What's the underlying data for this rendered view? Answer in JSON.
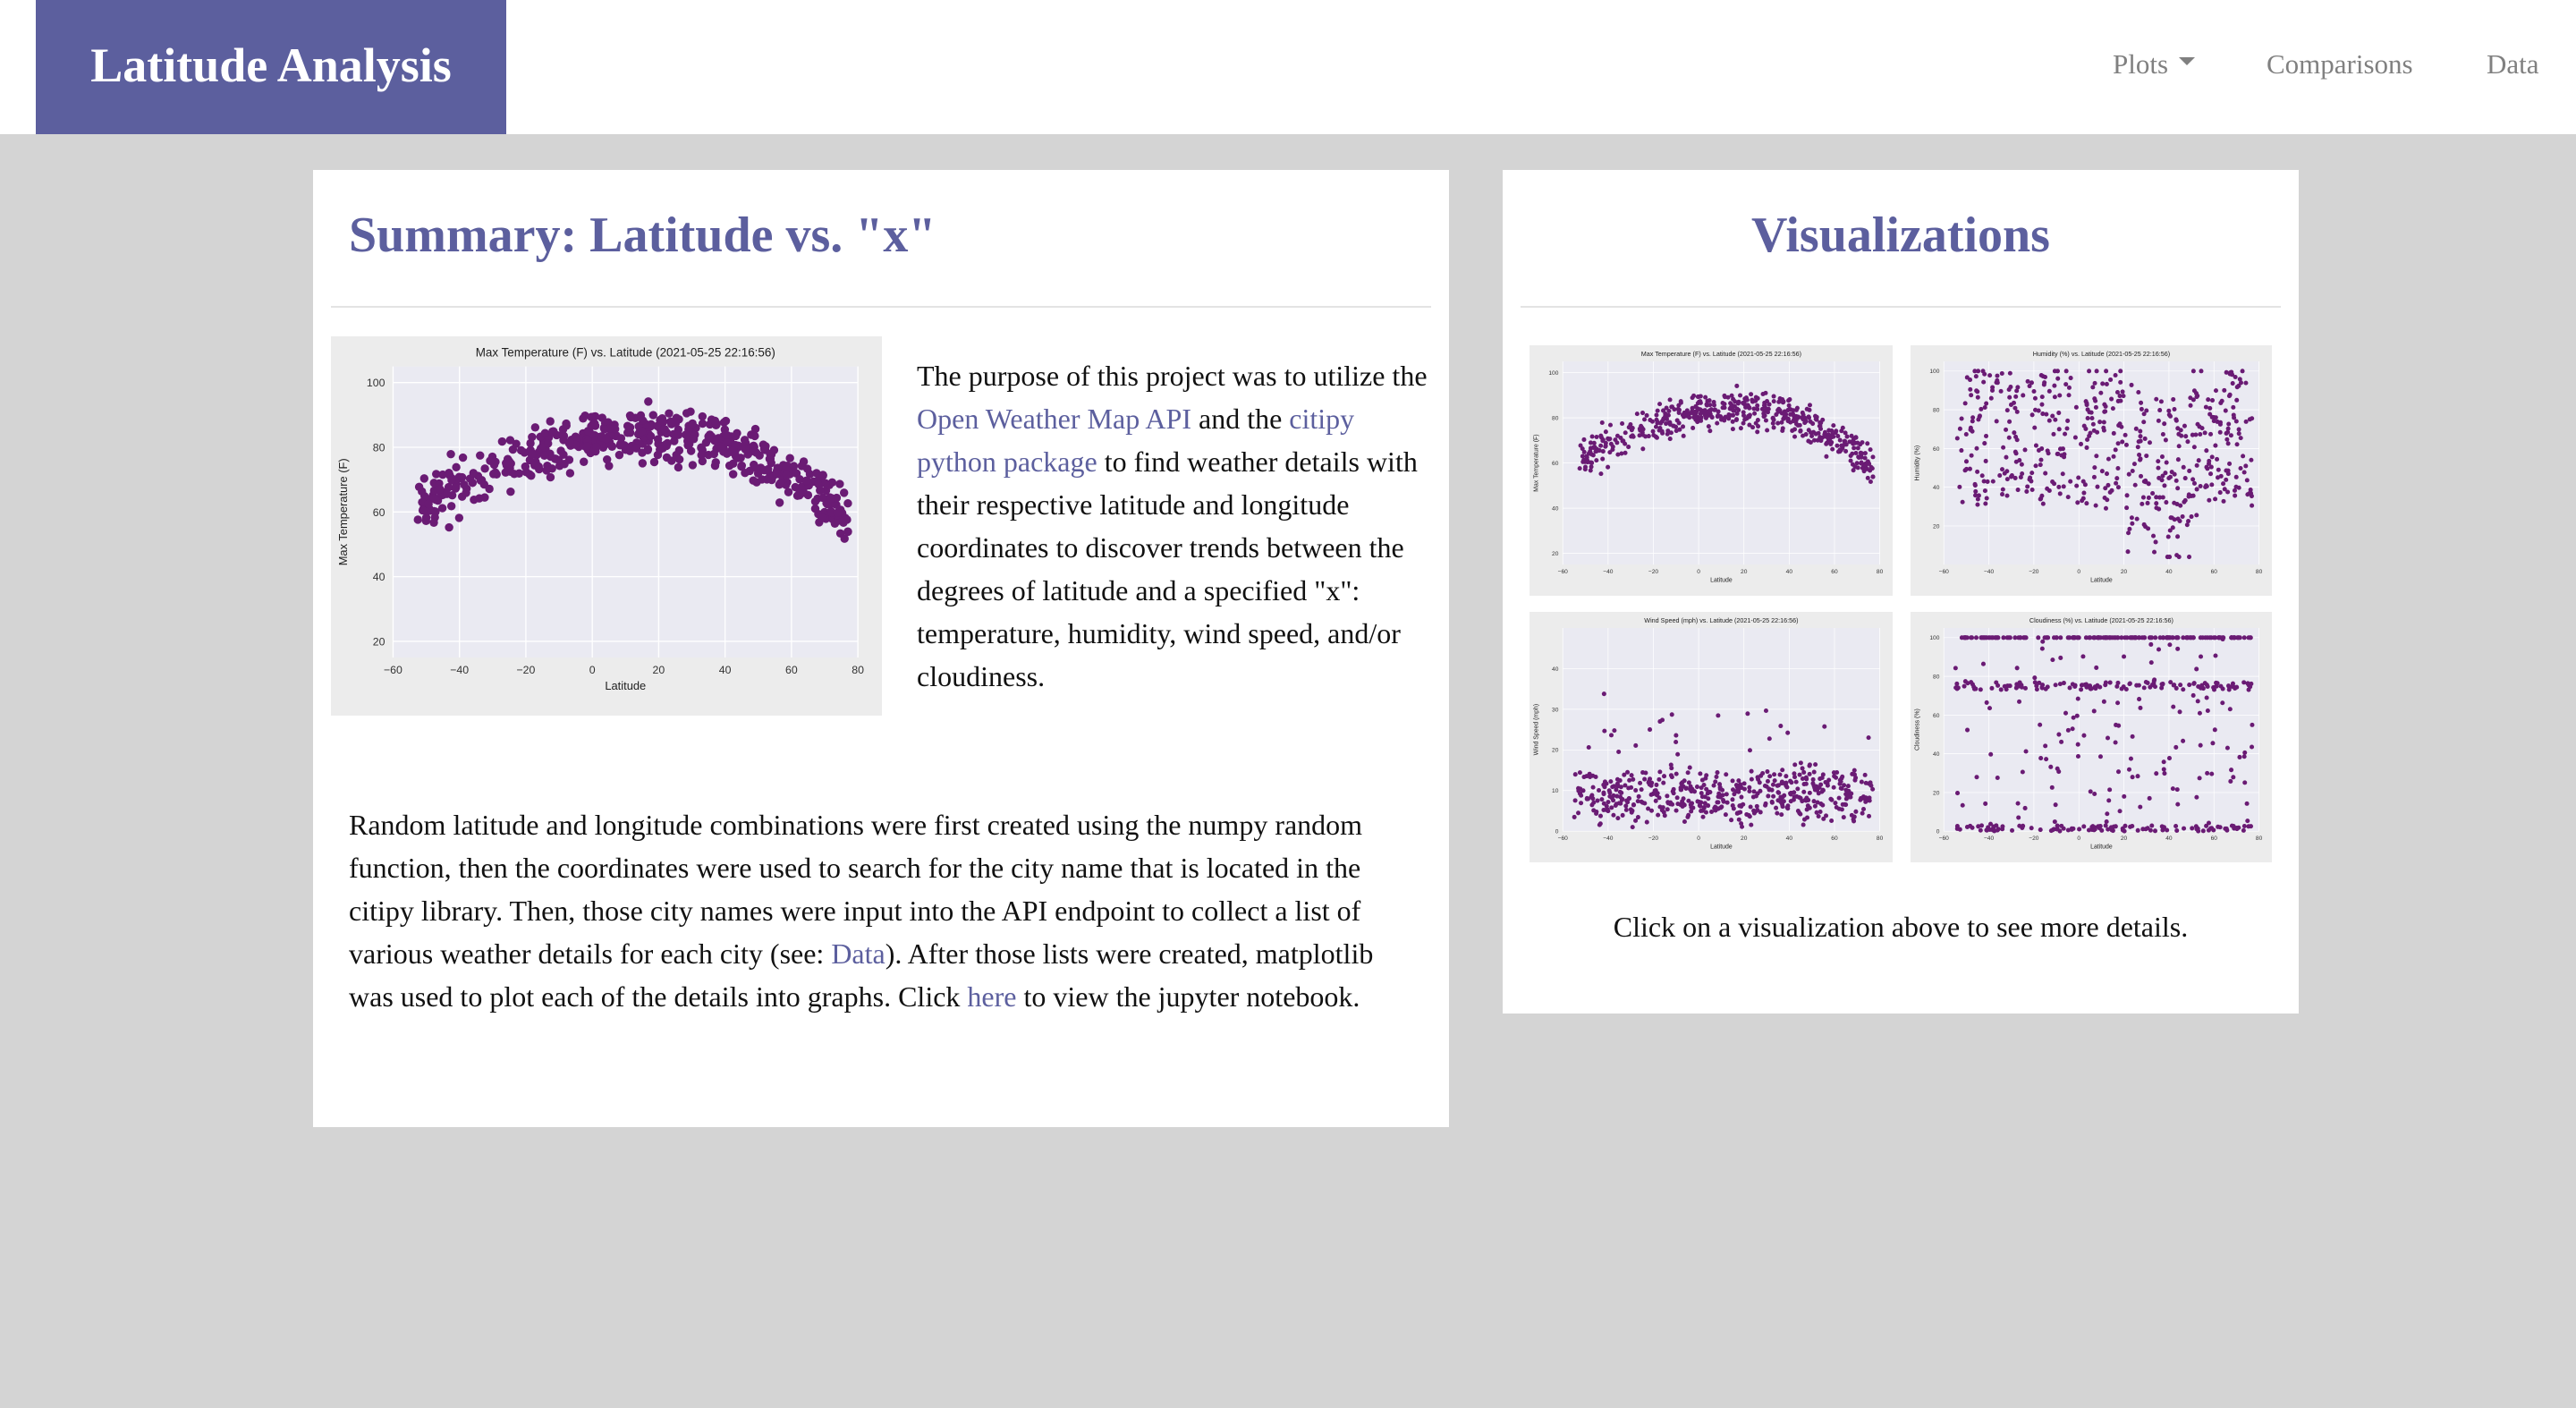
{
  "nav": {
    "brand": "Latitude Analysis",
    "items": [
      {
        "label": "Plots"
      },
      {
        "label": "Comparisons"
      },
      {
        "label": "Data"
      }
    ]
  },
  "summary": {
    "heading": "Summary: Latitude vs. \"x\"",
    "intro": {
      "pre": "The purpose of this project was to utilize the ",
      "link1": "Open Weather Map API",
      "mid": " and the ",
      "link2": "citipy python package",
      "post": " to find weather details with their respective latitude and longitude coordinates to discover trends between the degrees of latitude and a specified \"x\": temperature, humidity, wind speed, and/or cloudiness."
    },
    "detail": {
      "pre": "Random latitude and longitude combinations were first created using the numpy random function, then the coordinates were used to search for the city name that is located in the citipy library. Then, those city names were input into the API endpoint to collect a list of various weather details for each city (see: ",
      "data_link": "Data",
      "mid": "). After those lists were created, matplotlib was used to plot each of the details into graphs. Click ",
      "here_link": "here",
      "post": " to view the jupyter notebook."
    }
  },
  "visualizations": {
    "heading": "Visualizations",
    "caption": "Click on a visualization above to see more details."
  },
  "colors": {
    "accent": "#5c5f9e",
    "point": "#6a1b74",
    "plot_bg": "#eaeaf2"
  },
  "chart_data": [
    {
      "type": "scatter",
      "id": "temp",
      "title": "Max Temperature (F) vs. Latitude (2021-05-25 22:16:56)",
      "xlabel": "Latitude",
      "ylabel": "Max Temperature (F)",
      "xlim": [
        -60,
        80
      ],
      "ylim": [
        15,
        105
      ],
      "xticks": [
        "−60",
        "−40",
        "−20",
        "0",
        "20",
        "40",
        "60",
        "80"
      ],
      "yticks": [
        "20",
        "40",
        "60",
        "80",
        "100"
      ],
      "trend": "hump",
      "grid": true
    },
    {
      "type": "scatter",
      "id": "humidity",
      "title": "Humidity (%) vs. Latitude (2021-05-25 22:16:56)",
      "xlabel": "Latitude",
      "ylabel": "Humidity (%)",
      "xlim": [
        -60,
        80
      ],
      "ylim": [
        0,
        105
      ],
      "xticks": [
        "−60",
        "−40",
        "−20",
        "0",
        "20",
        "40",
        "60",
        "80"
      ],
      "yticks": [
        "20",
        "40",
        "60",
        "80",
        "100"
      ],
      "trend": "spread",
      "grid": true
    },
    {
      "type": "scatter",
      "id": "wind",
      "title": "Wind Speed (mph) vs. Latitude (2021-05-25 22:16:56)",
      "xlabel": "Latitude",
      "ylabel": "Wind Speed (mph)",
      "xlim": [
        -60,
        80
      ],
      "ylim": [
        0,
        50
      ],
      "xticks": [
        "−60",
        "−40",
        "−20",
        "0",
        "20",
        "40",
        "60",
        "80"
      ],
      "yticks": [
        "0",
        "10",
        "20",
        "30",
        "40"
      ],
      "trend": "low",
      "grid": true
    },
    {
      "type": "scatter",
      "id": "cloud",
      "title": "Cloudiness (%) vs. Latitude (2021-05-25 22:16:56)",
      "xlabel": "Latitude",
      "ylabel": "Cloudiness (%)",
      "xlim": [
        -60,
        80
      ],
      "ylim": [
        0,
        105
      ],
      "xticks": [
        "−60",
        "−40",
        "−20",
        "0",
        "20",
        "40",
        "60",
        "80"
      ],
      "yticks": [
        "0",
        "20",
        "40",
        "60",
        "80",
        "100"
      ],
      "trend": "bands",
      "grid": true
    }
  ]
}
